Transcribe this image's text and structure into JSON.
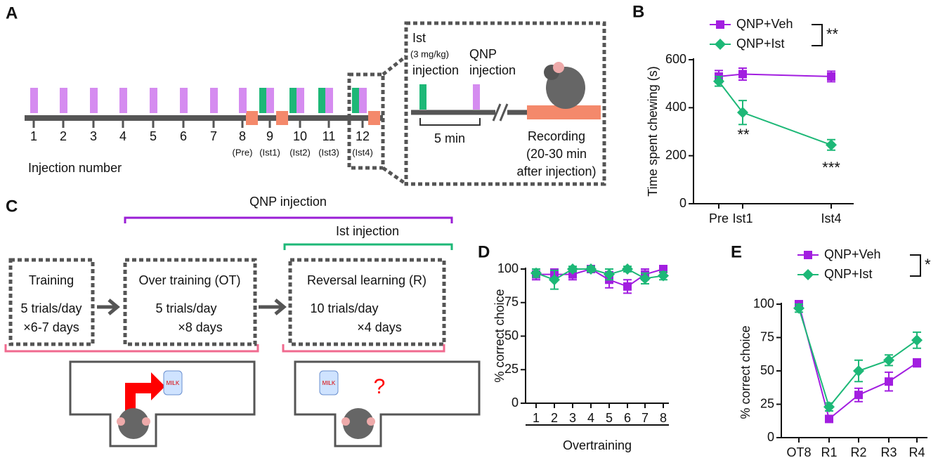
{
  "panel_labels": [
    "A",
    "B",
    "C",
    "D",
    "E"
  ],
  "panel_a": {
    "injection_numbers": [
      "1",
      "2",
      "3",
      "4",
      "5",
      "6",
      "7",
      "8",
      "9",
      "10",
      "11",
      "12"
    ],
    "phase_labels": [
      "(Pre)",
      "(Ist1)",
      "(Ist2)",
      "(Ist3)",
      "(Ist4)"
    ],
    "axis_label": "Injection number",
    "inset": {
      "ist_label": "Ist",
      "dose": "(3 mg/kg)",
      "ist_injection": "injection",
      "qnp_label": "QNP",
      "qnp_injection": "injection",
      "interval": "5 min",
      "recording": [
        "Recording",
        "(20-30 min",
        "after injection)"
      ]
    }
  },
  "panel_c": {
    "qnp_bracket": "QNP injection",
    "ist_bracket": "Ist injection",
    "stages": [
      {
        "title": "Training",
        "lines": [
          "5 trials/day",
          "×6-7 days"
        ]
      },
      {
        "title": "Over training (OT)",
        "lines": [
          "5 trials/day",
          "×8 days"
        ]
      },
      {
        "title": "Reversal learning (R)",
        "lines": [
          "10 trials/day",
          "×4 days"
        ]
      }
    ],
    "bottle_label": "MILK",
    "question": "?"
  },
  "chart_data": [
    {
      "type": "line",
      "ylabel": "Time spent chewing (s)",
      "categories": [
        "Pre",
        "Ist1",
        "Ist4"
      ],
      "ylim": [
        0,
        600
      ],
      "yticks": [
        0,
        200,
        400,
        600
      ],
      "legend_annotation": "**",
      "annotations": [
        "**",
        "***"
      ],
      "series": [
        {
          "name": "QNP+Veh",
          "color": "#a21ee0",
          "marker": "square",
          "values": [
            530,
            540,
            530
          ],
          "errors": [
            25,
            25,
            22
          ]
        },
        {
          "name": "QNP+Ist",
          "color": "#1db877",
          "marker": "diamond",
          "values": [
            510,
            380,
            245
          ],
          "errors": [
            20,
            50,
            22
          ]
        }
      ]
    },
    {
      "type": "line",
      "ylabel": "% correct choice",
      "xlabel": "Overtraining",
      "categories": [
        "1",
        "2",
        "3",
        "4",
        "5",
        "6",
        "7",
        "8"
      ],
      "ylim": [
        0,
        100
      ],
      "yticks": [
        0,
        25,
        50,
        75,
        100
      ],
      "series": [
        {
          "name": "QNP+Veh",
          "color": "#a21ee0",
          "marker": "square",
          "values": [
            96,
            96,
            96,
            100,
            92,
            87,
            96,
            100
          ],
          "errors": [
            4,
            4,
            4,
            2,
            6,
            5,
            4,
            2
          ]
        },
        {
          "name": "QNP+Ist",
          "color": "#1db877",
          "marker": "diamond",
          "values": [
            97,
            92,
            100,
            100,
            96,
            100,
            93,
            95
          ],
          "errors": [
            3,
            7,
            2,
            2,
            4,
            2,
            4,
            3
          ]
        }
      ]
    },
    {
      "type": "line",
      "ylabel": "% correct choice",
      "categories": [
        "OT8",
        "R1",
        "R2",
        "R3",
        "R4"
      ],
      "ylim": [
        0,
        100
      ],
      "yticks": [
        0,
        25,
        50,
        75,
        100
      ],
      "legend_annotation": "*",
      "series": [
        {
          "name": "QNP+Veh",
          "color": "#a21ee0",
          "marker": "square",
          "values": [
            100,
            14,
            32,
            42,
            56
          ],
          "errors": [
            2,
            2,
            5,
            7,
            3
          ]
        },
        {
          "name": "QNP+Ist",
          "color": "#1db877",
          "marker": "diamond",
          "values": [
            97,
            23,
            50,
            58,
            73
          ],
          "errors": [
            3,
            3,
            8,
            4,
            6
          ]
        }
      ]
    }
  ]
}
